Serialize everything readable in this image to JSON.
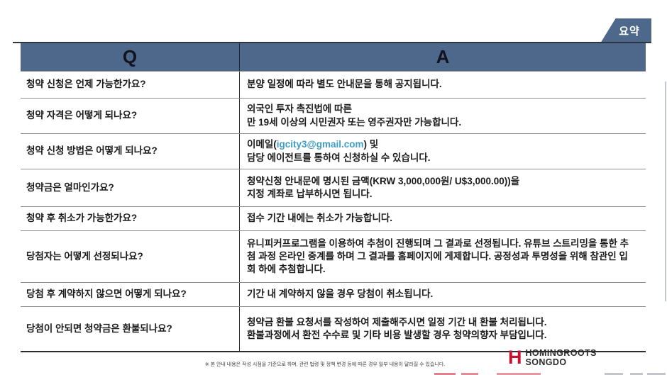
{
  "tab": {
    "label": "요약"
  },
  "table": {
    "headers": {
      "q": "Q",
      "a": "A"
    },
    "rows": [
      {
        "q": "청약 신청은 언제 가능한가요?",
        "a": [
          {
            "t": "분양 일정에 따라 별도 안내문을 통해 공지됩니다."
          }
        ]
      },
      {
        "q": "청약 자격은 어떻게 되나요?",
        "a": [
          {
            "t": "외국인 투자 촉진법에 따른\n만 19세 이상의 시민권자 또는 영주권자만 가능합니다."
          }
        ]
      },
      {
        "q": "청약 신청 방법은 어떻게 되나요?",
        "a": [
          {
            "t": "이메일("
          },
          {
            "t": "igcity3@gmail.com",
            "link": true
          },
          {
            "t": ") 및\n담당 에이전트를 통하여 신청하실 수 있습니다."
          }
        ]
      },
      {
        "q": "청약금은 얼마인가요?",
        "a": [
          {
            "t": "청약신청 안내문에 명시된 금액(KRW 3,000,000원/ U$3,000.00))을\n지정 계좌로 납부하시면 됩니다."
          }
        ]
      },
      {
        "q": "청약 후 취소가 가능한가요?",
        "a": [
          {
            "t": "접수 기간 내에는 취소가 가능합니다."
          }
        ]
      },
      {
        "q": "당첨자는 어떻게 선정되나요?",
        "a": [
          {
            "t": "유니피커프로그램을 이용하여 추첨이 진행되며 그 결과로 선정됩니다. 유튜브 스트리밍을 통한 추첨 과정 온라인 중계를 하며 그 결과를 홈페이지에 게제합니다. 공정성과 투명성을 위해 참관인 입회 하에 추첨합니다."
          }
        ]
      },
      {
        "q": "당첨 후 계약하지 않으면 어떻게 되나요?",
        "a": [
          {
            "t": "기간 내 계약하지 않을 경우 당첨이 취소됩니다."
          }
        ]
      },
      {
        "q": "당첨이 안되면 청약금은 환불되나요?",
        "a": [
          {
            "t": "청약금 환불 요청서를 작성하여 제출해주시면 일정 기간 내 환불 처리됩니다.\n환불과정에서 환전 수수료 및 기타 비용 발생할 경우 청약의향자 부담입니다."
          }
        ]
      }
    ]
  },
  "footer": {
    "note": "※ 본 안내 내용은 작성 시점을 기준으로 하며, 관련 법령 및 정책 변경 등에 따른 경우 일부 내용이 달라질 수 있습니다.",
    "logo": {
      "mark": "H",
      "line1": "HOMINGROOTS",
      "line2": "SONGDO"
    }
  },
  "colors": {
    "accent_blue": "#4d688a",
    "email_link": "#3f9ec6",
    "logo_red": "#c41331",
    "line_dark": "#2d3542",
    "row_border": "#8e8e8e",
    "text": "#1b1b1b"
  }
}
